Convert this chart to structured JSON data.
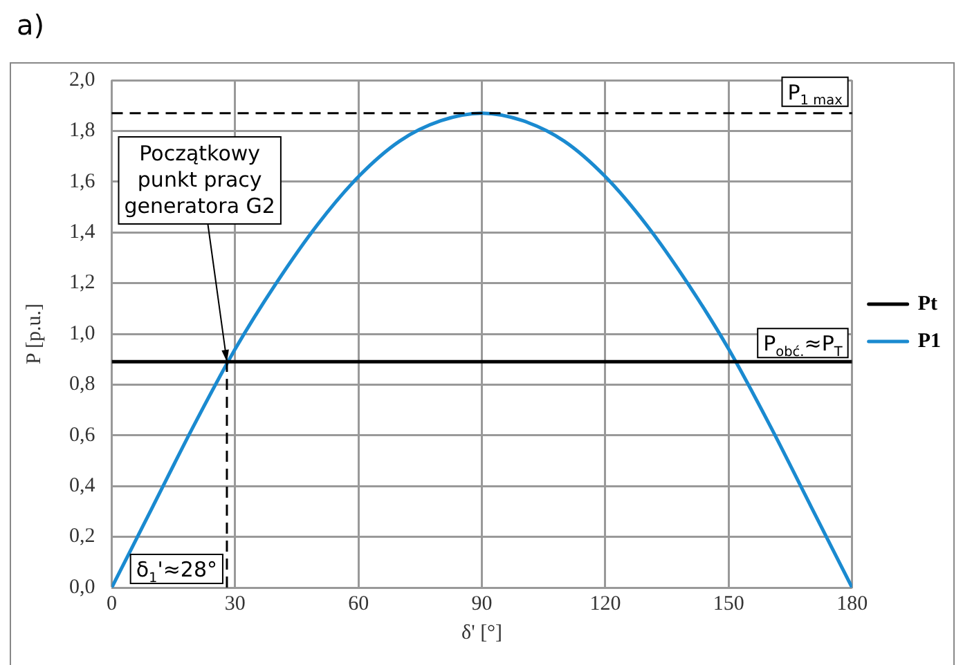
{
  "chart_data": {
    "type": "line",
    "title": "a)",
    "xlabel": "δ' [°]",
    "ylabel": "P [p.u.]",
    "x": [
      0,
      10,
      20,
      30,
      40,
      50,
      60,
      70,
      80,
      90,
      100,
      110,
      120,
      130,
      140,
      150,
      160,
      170,
      180
    ],
    "series": [
      {
        "name": "Pt",
        "color": "#000000",
        "x": [
          0,
          180
        ],
        "values": [
          0.89,
          0.89
        ]
      },
      {
        "name": "P1",
        "color": "#1a8ad0",
        "values": [
          0,
          0.32,
          0.64,
          0.94,
          1.2,
          1.43,
          1.62,
          1.76,
          1.84,
          1.87,
          1.84,
          1.76,
          1.62,
          1.43,
          1.2,
          0.94,
          0.64,
          0.32,
          0
        ]
      }
    ],
    "xlim": [
      0,
      180
    ],
    "xticks": [
      0,
      30,
      60,
      90,
      120,
      150,
      180
    ],
    "ylim": [
      0,
      2
    ],
    "yticks": [
      {
        "value": 0,
        "label": "0,0"
      },
      {
        "value": 0.2,
        "label": "0,2"
      },
      {
        "value": 0.4,
        "label": "0,4"
      },
      {
        "value": 0.6,
        "label": "0,6"
      },
      {
        "value": 0.8,
        "label": "0,8"
      },
      {
        "value": 1,
        "label": "1,0"
      },
      {
        "value": 1.2,
        "label": "1,2"
      },
      {
        "value": 1.4,
        "label": "1,4"
      },
      {
        "value": 1.6,
        "label": "1,6"
      },
      {
        "value": 1.8,
        "label": "1,8"
      },
      {
        "value": 2,
        "label": "2,0"
      }
    ],
    "ref_lines": [
      {
        "axis": "y",
        "value": 1.87,
        "label": "P$_{1 max}$",
        "color": "#000000",
        "line_style": "dashed"
      },
      {
        "axis": "x",
        "value": 28,
        "label": "δ$_{1}$'≈28°",
        "color": "#000000",
        "line_style": "dashed"
      }
    ],
    "annotations": [
      {
        "text": "Początkowy punkt pracy generatora G2",
        "x": 28,
        "y": 0.89
      },
      {
        "text": "P$_{obć.}$≈P$_{T}$",
        "x": 180,
        "y": 0.89
      }
    ],
    "grid": true,
    "legend": "right",
    "marker": "none",
    "line_style": "solid"
  }
}
